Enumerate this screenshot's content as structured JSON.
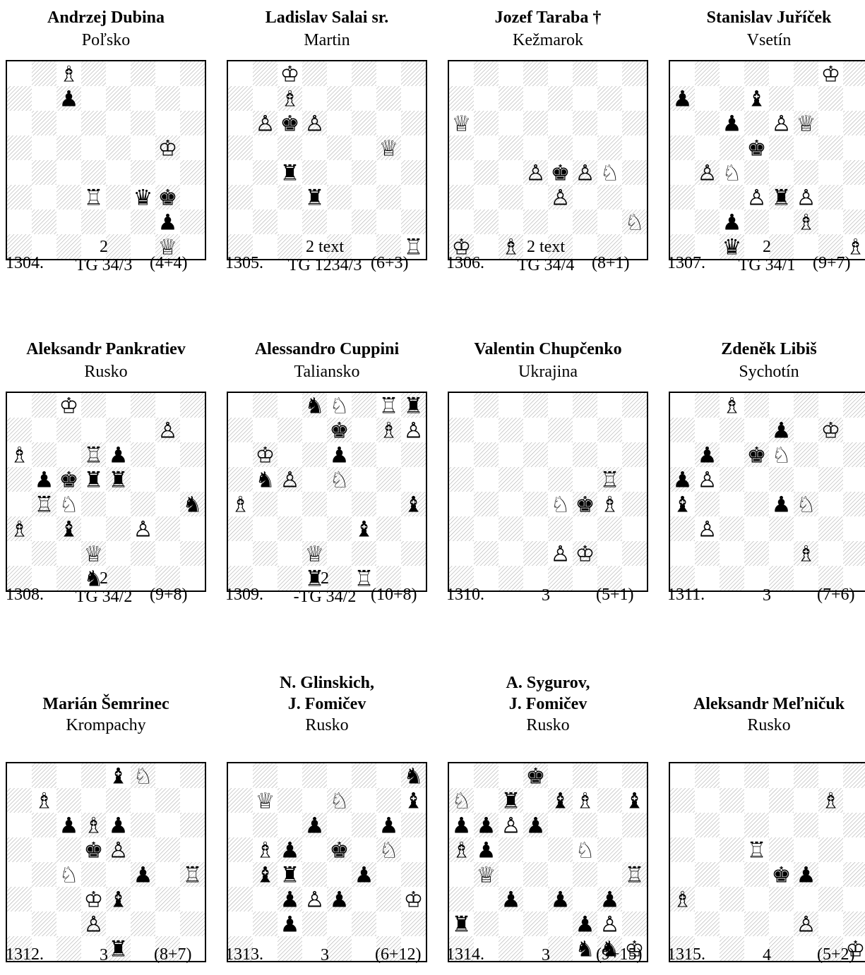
{
  "problems": [
    {
      "number": "1304.",
      "authors": [
        "Andrzej Dubina"
      ],
      "place": "Poľsko",
      "stip_top": "2",
      "stip_bottom": "TG 34/3",
      "count": "(4+4)",
      "pieces": [
        [
          "c8",
          "wB"
        ],
        [
          "c7",
          "bP"
        ],
        [
          "g5",
          "wK"
        ],
        [
          "d3",
          "wR"
        ],
        [
          "f3",
          "bQ"
        ],
        [
          "g3",
          "bK"
        ],
        [
          "g2",
          "bP"
        ],
        [
          "g1",
          "wQ"
        ]
      ]
    },
    {
      "number": "1305.",
      "authors": [
        "Ladislav Salai sr."
      ],
      "place": "Martin",
      "stip_top": "2 text",
      "stip_bottom": "TG 1234/3",
      "count": "(6+3)",
      "pieces": [
        [
          "c8",
          "wK"
        ],
        [
          "c7",
          "wB"
        ],
        [
          "b6",
          "wP"
        ],
        [
          "c6",
          "bK"
        ],
        [
          "d6",
          "wP"
        ],
        [
          "g5",
          "wQ"
        ],
        [
          "c4",
          "bR"
        ],
        [
          "d3",
          "bR"
        ],
        [
          "h1",
          "wR"
        ]
      ]
    },
    {
      "number": "1306.",
      "authors": [
        "Jozef Taraba †"
      ],
      "place": "Kežmarok",
      "stip_top": "2 text",
      "stip_bottom": "TG 34/4",
      "count": "(8+1)",
      "pieces": [
        [
          "a6",
          "wQ"
        ],
        [
          "d4",
          "wP"
        ],
        [
          "e4",
          "bK"
        ],
        [
          "f4",
          "wP"
        ],
        [
          "g4",
          "wN"
        ],
        [
          "e3",
          "wP"
        ],
        [
          "h2",
          "wN"
        ],
        [
          "a1",
          "wK"
        ],
        [
          "c1",
          "wB"
        ]
      ]
    },
    {
      "number": "1307.",
      "authors": [
        "Stanislav Juříček"
      ],
      "place": "Vsetín",
      "stip_top": "2",
      "stip_bottom": "TG 34/1",
      "count": "(9+7)",
      "pieces": [
        [
          "g8",
          "wK"
        ],
        [
          "a7",
          "bP"
        ],
        [
          "d7",
          "bB"
        ],
        [
          "c6",
          "bP"
        ],
        [
          "e6",
          "wP"
        ],
        [
          "f6",
          "wQ"
        ],
        [
          "d5",
          "bK"
        ],
        [
          "b4",
          "wP"
        ],
        [
          "c4",
          "wN"
        ],
        [
          "d3",
          "wP"
        ],
        [
          "e3",
          "bR"
        ],
        [
          "f3",
          "wP"
        ],
        [
          "c2",
          "bP"
        ],
        [
          "f2",
          "wB"
        ],
        [
          "c1",
          "bQ"
        ],
        [
          "h1",
          "wB"
        ]
      ]
    },
    {
      "number": "1308.",
      "authors": [
        "Aleksandr Pankratiev"
      ],
      "place": "Rusko",
      "stip_top": "2",
      "stip_bottom": "TG 34/2",
      "count": "(9+8)",
      "pieces": [
        [
          "c8",
          "wK"
        ],
        [
          "g7",
          "wP"
        ],
        [
          "a6",
          "wB"
        ],
        [
          "d6",
          "wR"
        ],
        [
          "e6",
          "bP"
        ],
        [
          "b5",
          "bP"
        ],
        [
          "c5",
          "bK"
        ],
        [
          "d5",
          "bR"
        ],
        [
          "e5",
          "bR"
        ],
        [
          "b4",
          "wR"
        ],
        [
          "c4",
          "wN"
        ],
        [
          "h4",
          "bN"
        ],
        [
          "a3",
          "wB"
        ],
        [
          "c3",
          "bB"
        ],
        [
          "f3",
          "wP"
        ],
        [
          "d2",
          "wQ"
        ],
        [
          "d1",
          "bN"
        ]
      ]
    },
    {
      "number": "1309.",
      "authors": [
        "Alessandro Cuppini"
      ],
      "place": "Taliansko",
      "stip_top": "2",
      "stip_bottom": "-TG 34/2",
      "count": "(10+8)",
      "pieces": [
        [
          "d8",
          "bN"
        ],
        [
          "e8",
          "wN"
        ],
        [
          "g8",
          "wR"
        ],
        [
          "h8",
          "bR"
        ],
        [
          "e7",
          "bK"
        ],
        [
          "g7",
          "wB"
        ],
        [
          "h7",
          "wP"
        ],
        [
          "b6",
          "wK"
        ],
        [
          "e6",
          "bP"
        ],
        [
          "b5",
          "bN"
        ],
        [
          "c5",
          "wP"
        ],
        [
          "e5",
          "wN"
        ],
        [
          "a4",
          "wB"
        ],
        [
          "h4",
          "bB"
        ],
        [
          "f3",
          "bB"
        ],
        [
          "d2",
          "wQ"
        ],
        [
          "d1",
          "bR"
        ],
        [
          "f1",
          "wR"
        ]
      ]
    },
    {
      "number": "1310.",
      "authors": [
        "Valentin Chupčenko"
      ],
      "place": "Ukrajina",
      "stip_top": "",
      "stip_bottom": "",
      "stip_single": "3",
      "count": "(5+1)",
      "pieces": [
        [
          "g5",
          "wR"
        ],
        [
          "e4",
          "wN"
        ],
        [
          "f4",
          "bK"
        ],
        [
          "g4",
          "wB"
        ],
        [
          "e2",
          "wP"
        ],
        [
          "f2",
          "wK"
        ]
      ]
    },
    {
      "number": "1311.",
      "authors": [
        "Zdeněk Libiš"
      ],
      "place": "Sychotín",
      "stip_top": "",
      "stip_bottom": "",
      "stip_single": "3",
      "count": "(7+6)",
      "pieces": [
        [
          "c8",
          "wB"
        ],
        [
          "e7",
          "bP"
        ],
        [
          "g7",
          "wK"
        ],
        [
          "b6",
          "bP"
        ],
        [
          "d6",
          "bK"
        ],
        [
          "e6",
          "wN"
        ],
        [
          "a5",
          "bP"
        ],
        [
          "b5",
          "wP"
        ],
        [
          "a4",
          "bB"
        ],
        [
          "e4",
          "bP"
        ],
        [
          "f4",
          "wN"
        ],
        [
          "b3",
          "wP"
        ],
        [
          "f2",
          "wB"
        ]
      ]
    },
    {
      "number": "1312.",
      "authors": [
        "Marián Šemrinec"
      ],
      "place": "Krompachy",
      "stip_top": "",
      "stip_bottom": "",
      "stip_single": "3",
      "count": "(8+7)",
      "pieces": [
        [
          "e8",
          "bB"
        ],
        [
          "f8",
          "wN"
        ],
        [
          "b7",
          "wB"
        ],
        [
          "c6",
          "bP"
        ],
        [
          "d6",
          "wB"
        ],
        [
          "e6",
          "bP"
        ],
        [
          "d5",
          "bK"
        ],
        [
          "e5",
          "wP"
        ],
        [
          "c4",
          "wN"
        ],
        [
          "f4",
          "bP"
        ],
        [
          "h4",
          "wR"
        ],
        [
          "d3",
          "wK"
        ],
        [
          "e3",
          "bB"
        ],
        [
          "d2",
          "wP"
        ],
        [
          "e1",
          "bR"
        ]
      ]
    },
    {
      "number": "1313.",
      "authors": [
        "N. Glinskich,",
        "J. Fomičev"
      ],
      "place": "Rusko",
      "stip_top": "",
      "stip_bottom": "",
      "stip_single": "3",
      "count": "(6+12)",
      "pieces": [
        [
          "h8",
          "bN"
        ],
        [
          "b7",
          "wQ"
        ],
        [
          "e7",
          "wN"
        ],
        [
          "h7",
          "bB"
        ],
        [
          "d6",
          "bP"
        ],
        [
          "g6",
          "bP"
        ],
        [
          "b5",
          "wB"
        ],
        [
          "c5",
          "bP"
        ],
        [
          "e5",
          "bK"
        ],
        [
          "g5",
          "wN"
        ],
        [
          "b4",
          "bB"
        ],
        [
          "c4",
          "bR"
        ],
        [
          "f4",
          "bP"
        ],
        [
          "c3",
          "bP"
        ],
        [
          "d3",
          "wP"
        ],
        [
          "e3",
          "bP"
        ],
        [
          "h3",
          "wK"
        ],
        [
          "c2",
          "bP"
        ]
      ]
    },
    {
      "number": "1314.",
      "authors": [
        "A. Sygurov,",
        "J. Fomičev"
      ],
      "place": "Rusko",
      "stip_top": "",
      "stip_bottom": "",
      "stip_single": "3",
      "count": "(9+15)",
      "pieces": [
        [
          "d8",
          "bK"
        ],
        [
          "a7",
          "wN"
        ],
        [
          "c7",
          "bR"
        ],
        [
          "e7",
          "bB"
        ],
        [
          "f7",
          "wB"
        ],
        [
          "h7",
          "bB"
        ],
        [
          "a6",
          "bP"
        ],
        [
          "b6",
          "bP"
        ],
        [
          "c6",
          "wP"
        ],
        [
          "d6",
          "bP"
        ],
        [
          "a5",
          "wB"
        ],
        [
          "b5",
          "bP"
        ],
        [
          "f5",
          "wN"
        ],
        [
          "b4",
          "wQ"
        ],
        [
          "h4",
          "wR"
        ],
        [
          "c3",
          "bP"
        ],
        [
          "e3",
          "bP"
        ],
        [
          "g3",
          "bP"
        ],
        [
          "a2",
          "bR"
        ],
        [
          "f2",
          "bP"
        ],
        [
          "g2",
          "wP"
        ],
        [
          "f1",
          "bN"
        ],
        [
          "g1",
          "bN"
        ],
        [
          "h1",
          "wK"
        ]
      ]
    },
    {
      "number": "1315.",
      "authors": [
        "Aleksandr Meľničuk"
      ],
      "place": "Rusko",
      "stip_top": "",
      "stip_bottom": "",
      "stip_single": "4",
      "count": "(5+2)",
      "pieces": [
        [
          "g7",
          "wB"
        ],
        [
          "d5",
          "wR"
        ],
        [
          "e4",
          "bK"
        ],
        [
          "f4",
          "bP"
        ],
        [
          "a3",
          "wB"
        ],
        [
          "f2",
          "wP"
        ],
        [
          "h1",
          "wK"
        ]
      ]
    }
  ]
}
